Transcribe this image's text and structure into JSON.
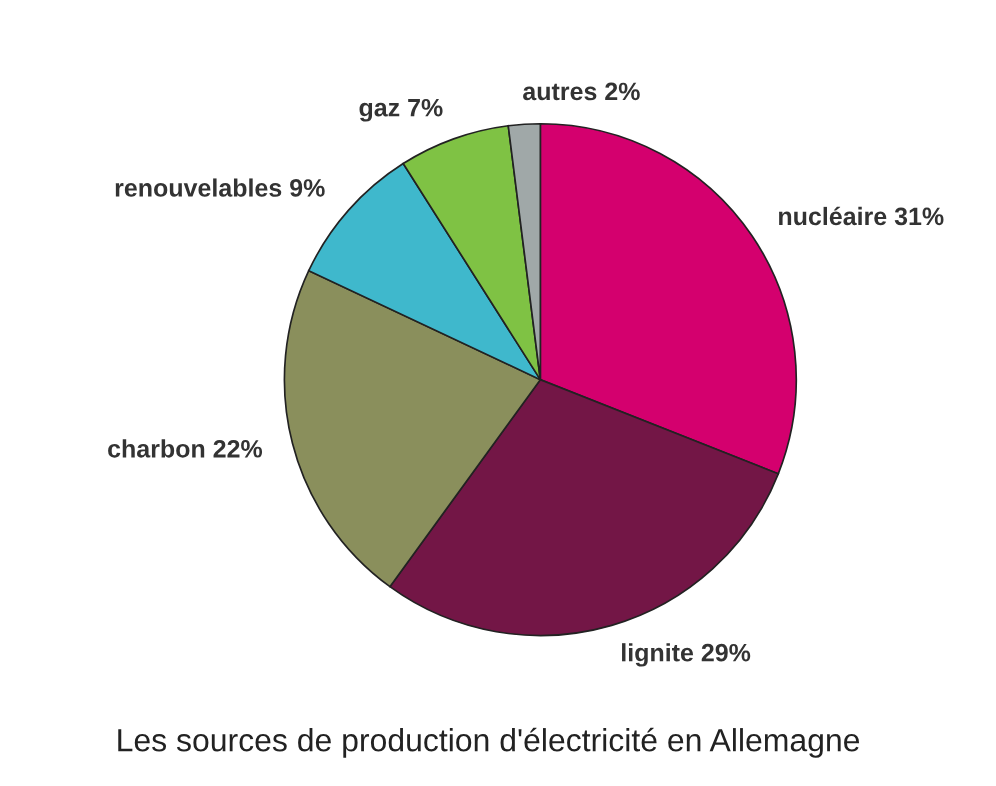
{
  "chart_data": {
    "type": "pie",
    "title": "Les sources de production d'électricité en Allemagne",
    "categories": [
      "nucléaire",
      "lignite",
      "charbon",
      "renouvelables",
      "gaz",
      "autres"
    ],
    "values": [
      31,
      29,
      22,
      9,
      7,
      2
    ],
    "value_labels": [
      "31%",
      "29%",
      "22%",
      "9%",
      "7%",
      "2%"
    ],
    "colors": [
      "#d4006e",
      "#731646",
      "#8a8f5c",
      "#3fb8cc",
      "#7fc244",
      "#a0a8a8"
    ],
    "legend": false
  }
}
